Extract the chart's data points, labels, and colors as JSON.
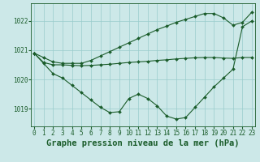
{
  "x": [
    0,
    1,
    2,
    3,
    4,
    5,
    6,
    7,
    8,
    9,
    10,
    11,
    12,
    13,
    14,
    15,
    16,
    17,
    18,
    19,
    20,
    21,
    22,
    23
  ],
  "line1": [
    1020.9,
    1020.75,
    1020.6,
    1020.55,
    1020.55,
    1020.55,
    1020.65,
    1020.8,
    1020.95,
    1021.1,
    1021.25,
    1021.4,
    1021.55,
    1021.7,
    1021.82,
    1021.95,
    1022.05,
    1022.15,
    1022.25,
    1022.25,
    1022.1,
    1021.85,
    1021.95,
    1022.3
  ],
  "line2": [
    1020.9,
    1020.58,
    1020.5,
    1020.5,
    1020.48,
    1020.47,
    1020.48,
    1020.5,
    1020.52,
    1020.55,
    1020.58,
    1020.6,
    1020.62,
    1020.65,
    1020.67,
    1020.7,
    1020.72,
    1020.74,
    1020.75,
    1020.75,
    1020.73,
    1020.72,
    1020.75,
    1020.75
  ],
  "line3": [
    1020.9,
    1020.55,
    1020.2,
    1020.05,
    1019.8,
    1019.55,
    1019.3,
    1019.05,
    1018.87,
    1018.9,
    1019.35,
    1019.5,
    1019.35,
    1019.1,
    1018.75,
    1018.65,
    1018.7,
    1019.05,
    1019.4,
    1019.75,
    1020.05,
    1020.35,
    1021.8,
    1022.0
  ],
  "background_color": "#cce8e8",
  "grid_color": "#99cccc",
  "line_color": "#1a5c2a",
  "xlabel": "Graphe pression niveau de la mer (hPa)",
  "ylim": [
    1018.4,
    1022.6
  ],
  "xlim": [
    -0.3,
    23.3
  ],
  "yticks": [
    1019,
    1020,
    1021,
    1022
  ],
  "xticks": [
    0,
    1,
    2,
    3,
    4,
    5,
    6,
    7,
    8,
    9,
    10,
    11,
    12,
    13,
    14,
    15,
    16,
    17,
    18,
    19,
    20,
    21,
    22,
    23
  ],
  "tick_fontsize": 5.5,
  "xlabel_fontsize": 7.5,
  "marker": "D",
  "markersize": 2.0,
  "linewidth": 0.8
}
